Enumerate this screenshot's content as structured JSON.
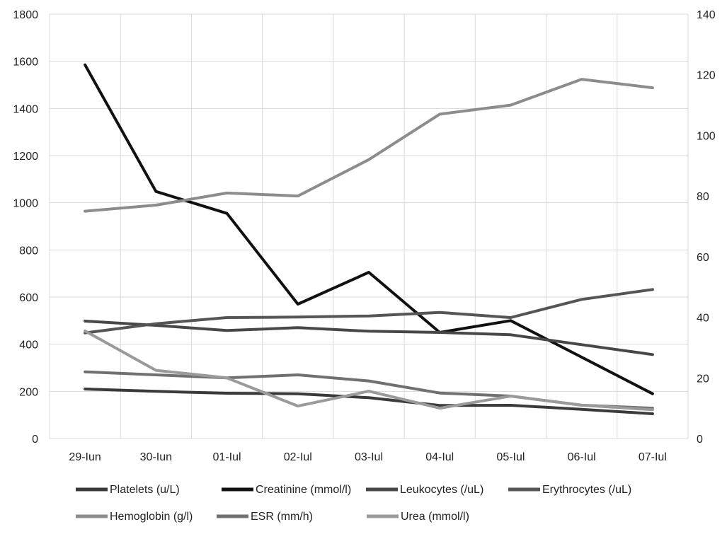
{
  "chart_data": {
    "type": "line",
    "categories": [
      "29-Iun",
      "30-Iun",
      "01-Iul",
      "02-Iul",
      "03-Iul",
      "04-Iul",
      "05-Iul",
      "06-Iul",
      "07-Iul"
    ],
    "y_left": {
      "ticks": [
        0,
        200,
        400,
        600,
        800,
        1000,
        1200,
        1400,
        1600,
        1800
      ],
      "ylim": [
        0,
        1800
      ]
    },
    "y_right": {
      "ticks": [
        0,
        20,
        40,
        60,
        80,
        100,
        120,
        140
      ],
      "ylim": [
        0,
        140
      ]
    },
    "grid": true,
    "legend_position": "bottom",
    "series": [
      {
        "name": "Platelets (u/L)",
        "axis": "left",
        "color": "#3a3a3a",
        "values": [
          210,
          200,
          192,
          190,
          173,
          140,
          141,
          124,
          105
        ]
      },
      {
        "name": "Creatinine (mmol/l)",
        "axis": "left",
        "color": "#111111",
        "values": [
          1585,
          1048,
          955,
          570,
          705,
          450,
          500,
          345,
          190
        ]
      },
      {
        "name": "Leukocytes (/uL)",
        "axis": "left",
        "color": "#474747",
        "values": [
          498,
          480,
          458,
          470,
          455,
          450,
          440,
          398,
          356
        ]
      },
      {
        "name": "Erythrocytes (/uL)",
        "axis": "left",
        "color": "#555555",
        "values": [
          448,
          487,
          513,
          515,
          520,
          535,
          513,
          590,
          632
        ]
      },
      {
        "name": "Hemoglobin (g/l)",
        "axis": "right",
        "color": "#8c8c8c",
        "values": [
          75,
          77,
          81,
          80,
          92,
          107,
          110,
          118.5,
          115.7
        ]
      },
      {
        "name": "ESR (mm/h)",
        "axis": "right",
        "color": "#707070",
        "values": [
          22,
          21,
          20,
          21,
          19,
          15,
          14,
          11,
          10
        ]
      },
      {
        "name": "Urea (mmol/l)",
        "axis": "right",
        "color": "#9a9a9a",
        "values": [
          35.5,
          22.5,
          20,
          10.7,
          15.6,
          10,
          14,
          11,
          9.5
        ]
      }
    ]
  }
}
